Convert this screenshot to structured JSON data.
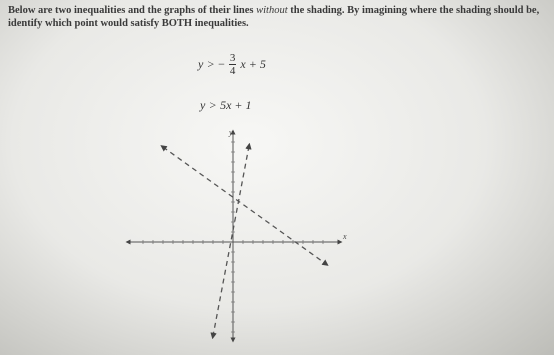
{
  "prompt": {
    "before": "Below are two inequalities and the graphs of their lines ",
    "emphasis": "without",
    "after": " the shading. By imagining where the shading should be, identify which point would satisfy BOTH inequalities."
  },
  "inequalities": [
    {
      "lhs": "y",
      "op": ">",
      "sign": "−",
      "numerator": "3",
      "denominator": "4",
      "rest": "x + 5"
    },
    {
      "lhs": "y",
      "op": ">",
      "rest": "5x + 1"
    }
  ],
  "graph": {
    "x_label": "x",
    "y_label": "y"
  }
}
